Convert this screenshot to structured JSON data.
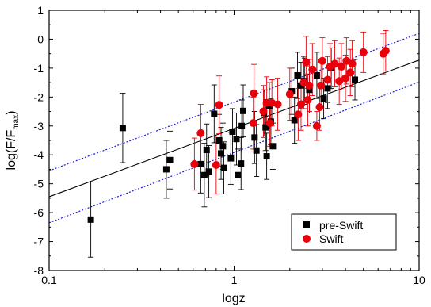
{
  "chart_data": {
    "type": "scatter",
    "title": "",
    "xlabel": "logz",
    "ylabel_main": "log(F/F",
    "ylabel_sub": "max",
    "ylabel_close": ")",
    "x_scale": "log",
    "xlim": [
      0.1,
      10
    ],
    "ylim": [
      -8,
      1
    ],
    "x_ticks": [
      {
        "value": 0.1,
        "label": "0.1"
      },
      {
        "value": 1,
        "label": "1"
      },
      {
        "value": 10,
        "label": "10"
      }
    ],
    "y_ticks": [
      1,
      0,
      -1,
      -2,
      -3,
      -4,
      -5,
      -6,
      -7,
      -8
    ],
    "grid": false,
    "legend_position": "bottom-right",
    "fit_line": {
      "name": "best fit",
      "color": "#000000",
      "points": [
        [
          0.1,
          -5.45
        ],
        [
          10,
          -0.72
        ]
      ]
    },
    "band_lines": [
      {
        "name": "upper bound",
        "color": "#1a1adc",
        "points": [
          [
            0.1,
            -4.55
          ],
          [
            10,
            0.2
          ]
        ]
      },
      {
        "name": "lower bound",
        "color": "#1a1adc",
        "points": [
          [
            0.1,
            -6.35
          ],
          [
            10,
            -1.48
          ]
        ]
      }
    ],
    "series": [
      {
        "name": "pre-Swift",
        "marker": "square",
        "color": "#000000",
        "error_color": "#000000",
        "points": [
          {
            "x": 0.168,
            "y": -6.24,
            "e": 1.3
          },
          {
            "x": 0.25,
            "y": -3.07,
            "e": 1.2
          },
          {
            "x": 0.43,
            "y": -4.5,
            "e": 1.0
          },
          {
            "x": 0.45,
            "y": -4.18,
            "e": 1.0
          },
          {
            "x": 0.66,
            "y": -4.32,
            "e": 1.0
          },
          {
            "x": 0.69,
            "y": -4.7,
            "e": 1.1
          },
          {
            "x": 0.71,
            "y": -3.83,
            "e": 0.9
          },
          {
            "x": 0.73,
            "y": -4.58,
            "e": 0.9
          },
          {
            "x": 0.78,
            "y": -2.58,
            "e": 1.0
          },
          {
            "x": 0.83,
            "y": -3.5,
            "e": 0.9
          },
          {
            "x": 0.85,
            "y": -3.95,
            "e": 0.9
          },
          {
            "x": 0.87,
            "y": -3.7,
            "e": 0.8
          },
          {
            "x": 0.88,
            "y": -4.45,
            "e": 0.9
          },
          {
            "x": 0.96,
            "y": -4.12,
            "e": 0.9
          },
          {
            "x": 0.98,
            "y": -3.2,
            "e": 0.8
          },
          {
            "x": 1.03,
            "y": -3.45,
            "e": 0.9
          },
          {
            "x": 1.05,
            "y": -4.7,
            "e": 0.9
          },
          {
            "x": 1.09,
            "y": -4.3,
            "e": 0.9
          },
          {
            "x": 1.1,
            "y": -3.0,
            "e": 0.9
          },
          {
            "x": 1.12,
            "y": -2.48,
            "e": 0.9
          },
          {
            "x": 1.29,
            "y": -3.4,
            "e": 0.9
          },
          {
            "x": 1.32,
            "y": -3.85,
            "e": 0.9
          },
          {
            "x": 1.45,
            "y": -2.55,
            "e": 0.8
          },
          {
            "x": 1.48,
            "y": -3.05,
            "e": 0.8
          },
          {
            "x": 1.5,
            "y": -4.05,
            "e": 0.8
          },
          {
            "x": 1.55,
            "y": -2.3,
            "e": 0.8
          },
          {
            "x": 1.58,
            "y": -2.85,
            "e": 0.8
          },
          {
            "x": 1.62,
            "y": -3.7,
            "e": 0.8
          },
          {
            "x": 2.05,
            "y": -1.8,
            "e": 0.8
          },
          {
            "x": 2.12,
            "y": -2.8,
            "e": 0.8
          },
          {
            "x": 2.2,
            "y": -1.25,
            "e": 0.8
          },
          {
            "x": 2.3,
            "y": -1.6,
            "e": 0.8
          },
          {
            "x": 2.4,
            "y": -1.45,
            "e": 0.8
          },
          {
            "x": 2.55,
            "y": -1.75,
            "e": 0.8
          },
          {
            "x": 2.8,
            "y": -1.25,
            "e": 0.8
          },
          {
            "x": 3.05,
            "y": -2.05,
            "e": 0.7
          },
          {
            "x": 3.2,
            "y": -1.7,
            "e": 0.7
          },
          {
            "x": 3.35,
            "y": -1.0,
            "e": 0.7
          },
          {
            "x": 4.5,
            "y": -1.4,
            "e": 0.7
          }
        ]
      },
      {
        "name": "Swift",
        "marker": "circle",
        "color": "#e8000b",
        "error_color": "#e8000b",
        "points": [
          {
            "x": 0.61,
            "y": -4.32,
            "e": 0.9
          },
          {
            "x": 0.66,
            "y": -3.25,
            "e": 1.0
          },
          {
            "x": 0.8,
            "y": -4.35,
            "e": 1.0
          },
          {
            "x": 0.83,
            "y": -2.27,
            "e": 1.0
          },
          {
            "x": 1.28,
            "y": -1.87,
            "e": 1.0
          },
          {
            "x": 1.27,
            "y": -2.9,
            "e": 0.9
          },
          {
            "x": 1.44,
            "y": -2.5,
            "e": 0.9
          },
          {
            "x": 1.5,
            "y": -2.2,
            "e": 0.9
          },
          {
            "x": 1.56,
            "y": -2.9,
            "e": 0.8
          },
          {
            "x": 1.6,
            "y": -2.2,
            "e": 0.8
          },
          {
            "x": 1.72,
            "y": -2.25,
            "e": 0.9
          },
          {
            "x": 2.0,
            "y": -1.9,
            "e": 0.9
          },
          {
            "x": 2.22,
            "y": -2.6,
            "e": 0.9
          },
          {
            "x": 2.3,
            "y": -2.25,
            "e": 0.9
          },
          {
            "x": 2.38,
            "y": -1.5,
            "e": 0.9
          },
          {
            "x": 2.45,
            "y": -0.8,
            "e": 0.9
          },
          {
            "x": 2.5,
            "y": -2.1,
            "e": 0.9
          },
          {
            "x": 2.55,
            "y": -1.6,
            "e": 0.9
          },
          {
            "x": 2.65,
            "y": -1.05,
            "e": 0.9
          },
          {
            "x": 2.8,
            "y": -3.0,
            "e": 0.5
          },
          {
            "x": 2.9,
            "y": -2.35,
            "e": 0.8
          },
          {
            "x": 2.95,
            "y": -1.6,
            "e": 0.8
          },
          {
            "x": 3.0,
            "y": -0.75,
            "e": 0.8
          },
          {
            "x": 3.2,
            "y": -1.4,
            "e": 0.8
          },
          {
            "x": 3.3,
            "y": -0.95,
            "e": 0.8
          },
          {
            "x": 3.5,
            "y": -0.85,
            "e": 0.8
          },
          {
            "x": 3.7,
            "y": -1.45,
            "e": 0.8
          },
          {
            "x": 3.8,
            "y": -0.95,
            "e": 0.8
          },
          {
            "x": 4.0,
            "y": -1.35,
            "e": 0.8
          },
          {
            "x": 4.05,
            "y": -0.75,
            "e": 0.8
          },
          {
            "x": 4.25,
            "y": -1.15,
            "e": 0.8
          },
          {
            "x": 4.35,
            "y": -0.85,
            "e": 0.8
          },
          {
            "x": 5.0,
            "y": -0.45,
            "e": 0.7
          },
          {
            "x": 6.4,
            "y": -0.5,
            "e": 0.7
          },
          {
            "x": 6.6,
            "y": -0.4,
            "e": 0.7
          }
        ]
      }
    ]
  }
}
